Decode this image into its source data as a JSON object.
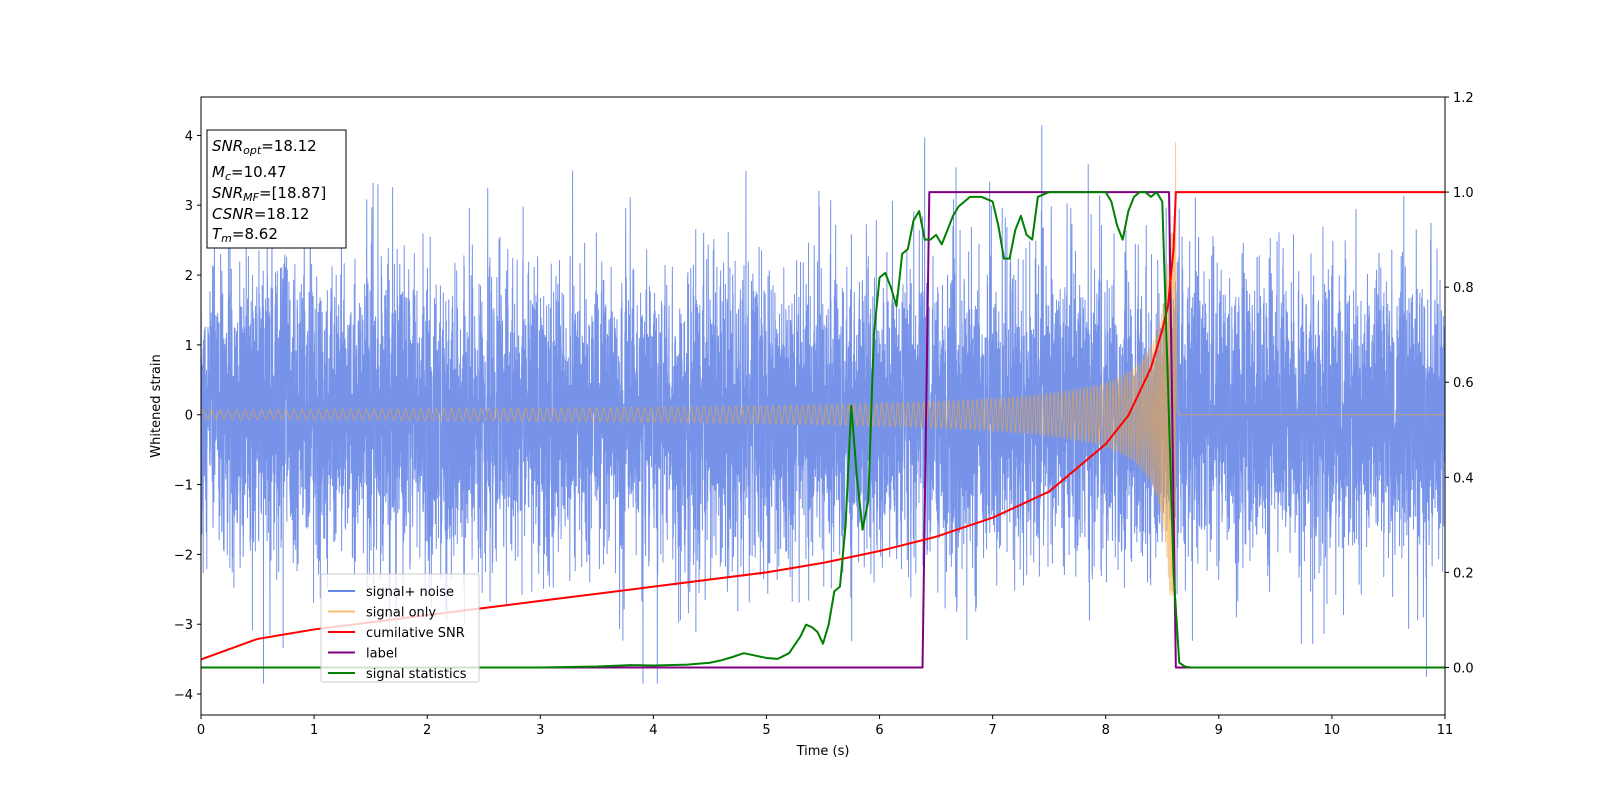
{
  "chart_data": {
    "type": "line",
    "title": "",
    "xlabel": "Time (s)",
    "ylabel": "Whitened strain",
    "y2label": "",
    "xlim": [
      0,
      11
    ],
    "ylim": [
      -4.3,
      4.55
    ],
    "y2lim": [
      -0.1,
      1.2
    ],
    "x_ticks": [
      0,
      1,
      2,
      3,
      4,
      5,
      6,
      7,
      8,
      9,
      10,
      11
    ],
    "y_ticks": [
      -4,
      -3,
      -2,
      -1,
      0,
      1,
      2,
      3,
      4
    ],
    "y2_ticks": [
      0.0,
      0.2,
      0.4,
      0.6,
      0.8,
      1.0,
      1.2
    ],
    "x_tick_labels": [
      "0",
      "1",
      "2",
      "3",
      "4",
      "5",
      "6",
      "7",
      "8",
      "9",
      "10",
      "11"
    ],
    "y_tick_labels": [
      "−4",
      "−3",
      "−2",
      "−1",
      "0",
      "1",
      "2",
      "3",
      "4"
    ],
    "y2_tick_labels": [
      "0.0",
      "0.2",
      "0.4",
      "0.6",
      "0.8",
      "1.0",
      "1.2"
    ],
    "grid": false,
    "legend_position": "bottom-left",
    "series": [
      {
        "name": "signal+ noise",
        "axis": "left",
        "color": "#4169e1",
        "kind": "gaussian-noise",
        "std": 1.05,
        "max": 4.15,
        "min": -3.85,
        "x_range": [
          0,
          11
        ]
      },
      {
        "name": "signal only",
        "axis": "left",
        "color": "#f4a63a",
        "kind": "chirp",
        "merger_time": 8.62,
        "start_amplitude": 0.07,
        "peak_amplitude": 2.6,
        "x_range": [
          0,
          11
        ]
      },
      {
        "name": "cumilative SNR",
        "axis": "right",
        "color": "#ff0000",
        "x": [
          0,
          0.5,
          1,
          2,
          3,
          4,
          5,
          5.5,
          6,
          6.5,
          7,
          7.5,
          8,
          8.2,
          8.4,
          8.5,
          8.55,
          8.6,
          8.62,
          11
        ],
        "y": [
          0.017,
          0.06,
          0.08,
          0.11,
          0.14,
          0.17,
          0.2,
          0.22,
          0.245,
          0.275,
          0.315,
          0.37,
          0.47,
          0.53,
          0.63,
          0.71,
          0.76,
          0.88,
          1.0,
          1.0
        ]
      },
      {
        "name": "label",
        "axis": "right",
        "color": "#800080",
        "x": [
          0,
          6.38,
          6.44,
          8.56,
          8.62,
          11
        ],
        "y": [
          0,
          0,
          1,
          1,
          0,
          0
        ]
      },
      {
        "name": "signal statistics",
        "axis": "right",
        "color": "#008000",
        "x": [
          0,
          1,
          2,
          3,
          3.5,
          3.8,
          4,
          4.3,
          4.5,
          4.6,
          4.7,
          4.8,
          4.9,
          5.0,
          5.1,
          5.2,
          5.3,
          5.35,
          5.4,
          5.45,
          5.5,
          5.55,
          5.6,
          5.65,
          5.7,
          5.75,
          5.8,
          5.85,
          5.9,
          5.95,
          6.0,
          6.05,
          6.1,
          6.15,
          6.2,
          6.25,
          6.3,
          6.35,
          6.4,
          6.45,
          6.5,
          6.55,
          6.6,
          6.65,
          6.7,
          6.8,
          6.9,
          7.0,
          7.05,
          7.1,
          7.15,
          7.2,
          7.25,
          7.3,
          7.35,
          7.4,
          7.45,
          7.5,
          7.6,
          7.7,
          7.8,
          7.9,
          8.0,
          8.05,
          8.1,
          8.15,
          8.2,
          8.25,
          8.3,
          8.35,
          8.4,
          8.45,
          8.5,
          8.55,
          8.6,
          8.65,
          8.7,
          8.75,
          8.8,
          8.9,
          11
        ],
        "y": [
          0,
          0,
          0,
          0,
          0.002,
          0.005,
          0.004,
          0.006,
          0.01,
          0.015,
          0.022,
          0.03,
          0.025,
          0.02,
          0.018,
          0.03,
          0.065,
          0.09,
          0.085,
          0.075,
          0.05,
          0.09,
          0.16,
          0.17,
          0.3,
          0.55,
          0.4,
          0.29,
          0.35,
          0.7,
          0.82,
          0.83,
          0.8,
          0.76,
          0.87,
          0.88,
          0.94,
          0.96,
          0.9,
          0.9,
          0.91,
          0.89,
          0.92,
          0.95,
          0.97,
          0.99,
          0.99,
          0.98,
          0.93,
          0.86,
          0.86,
          0.92,
          0.95,
          0.91,
          0.9,
          0.99,
          0.995,
          1.0,
          1.0,
          1.0,
          1.0,
          1.0,
          1.0,
          0.98,
          0.93,
          0.9,
          0.96,
          0.99,
          1.0,
          1.0,
          0.99,
          1.0,
          0.98,
          0.6,
          0.2,
          0.01,
          0.002,
          0,
          0,
          0,
          0
        ]
      }
    ]
  },
  "annotation": {
    "snr_opt": {
      "sym": "SNR",
      "sub": "opt",
      "value": "=18.12"
    },
    "mc": {
      "sym": "M",
      "sub": "c",
      "value": "=10.47"
    },
    "snr_mf": {
      "sym": "SNR",
      "sub": "MF",
      "value": "=[18.87]"
    },
    "csnr": {
      "sym": "CSNR",
      "value": "=18.12"
    },
    "tm": {
      "sym": "T",
      "sub": "m",
      "value": "=8.62"
    }
  }
}
